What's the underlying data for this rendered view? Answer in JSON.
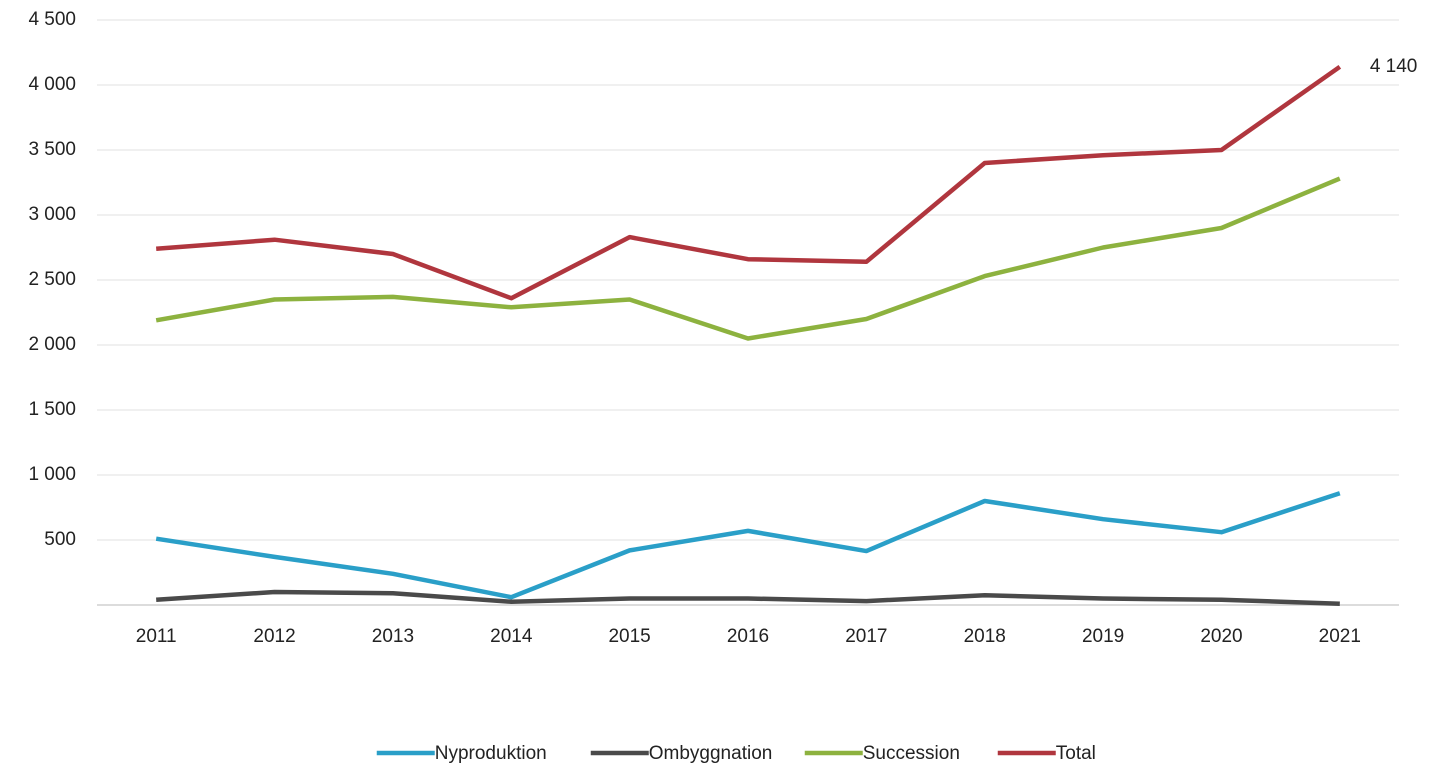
{
  "chart_data": {
    "type": "line",
    "categories": [
      "2011",
      "2012",
      "2013",
      "2014",
      "2015",
      "2016",
      "2017",
      "2018",
      "2019",
      "2020",
      "2021"
    ],
    "series": [
      {
        "name": "Nyproduktion",
        "color": "#2a9fc8",
        "values": [
          510,
          370,
          240,
          60,
          420,
          570,
          415,
          800,
          660,
          560,
          860
        ]
      },
      {
        "name": "Ombyggnation",
        "color": "#4a4a4a",
        "values": [
          40,
          100,
          90,
          25,
          50,
          50,
          30,
          75,
          50,
          40,
          10
        ]
      },
      {
        "name": "Succession",
        "color": "#8db23f",
        "values": [
          2190,
          2350,
          2370,
          2290,
          2350,
          2050,
          2200,
          2530,
          2750,
          2900,
          3280
        ]
      },
      {
        "name": "Total",
        "color": "#b0363e",
        "values": [
          2740,
          2810,
          2700,
          2360,
          2830,
          2660,
          2640,
          3400,
          3460,
          3500,
          4140
        ],
        "value_labels": [
          null,
          null,
          null,
          null,
          null,
          null,
          null,
          null,
          null,
          null,
          "4 140"
        ]
      }
    ],
    "ylim": [
      0,
      4500
    ],
    "yticks": [
      500,
      {
        "value": 1000,
        "label": "1 000"
      },
      {
        "value": 1500,
        "label": "1 500"
      },
      {
        "value": 2000,
        "label": "2 000"
      },
      {
        "value": 2500,
        "label": "2 500"
      },
      {
        "value": 3000,
        "label": "3 000"
      },
      {
        "value": 3500,
        "label": "3 500"
      },
      {
        "value": 4000,
        "label": "4 000"
      },
      {
        "value": 4500,
        "label": "4 500"
      }
    ],
    "grid": true,
    "legend": "bottom"
  }
}
